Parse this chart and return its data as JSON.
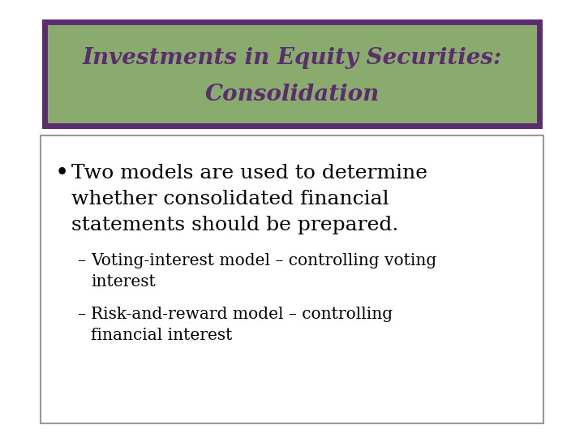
{
  "title_line1": "Investments in Equity Securities:",
  "title_line2": "Consolidation",
  "title_bg_color": "#8aab6e",
  "title_border_color": "#5c2d6e",
  "title_text_color": "#5c2d6e",
  "body_bg_color": "#ffffff",
  "body_border_color": "#999999",
  "slide_bg_color": "#ffffff",
  "bullet_lines": [
    "Two models are used to determine",
    "whether consolidated financial",
    "statements should be prepared."
  ],
  "sub_bullet1_lines": [
    "Voting-interest model – controlling voting",
    "interest"
  ],
  "sub_bullet2_lines": [
    "Risk-and-reward model – controlling",
    "financial interest"
  ],
  "body_text_color": "#000000",
  "title_fontsize": 20,
  "bullet_fontsize": 18,
  "sub_bullet_fontsize": 14.5,
  "slide_bg": "#e8e8e8"
}
